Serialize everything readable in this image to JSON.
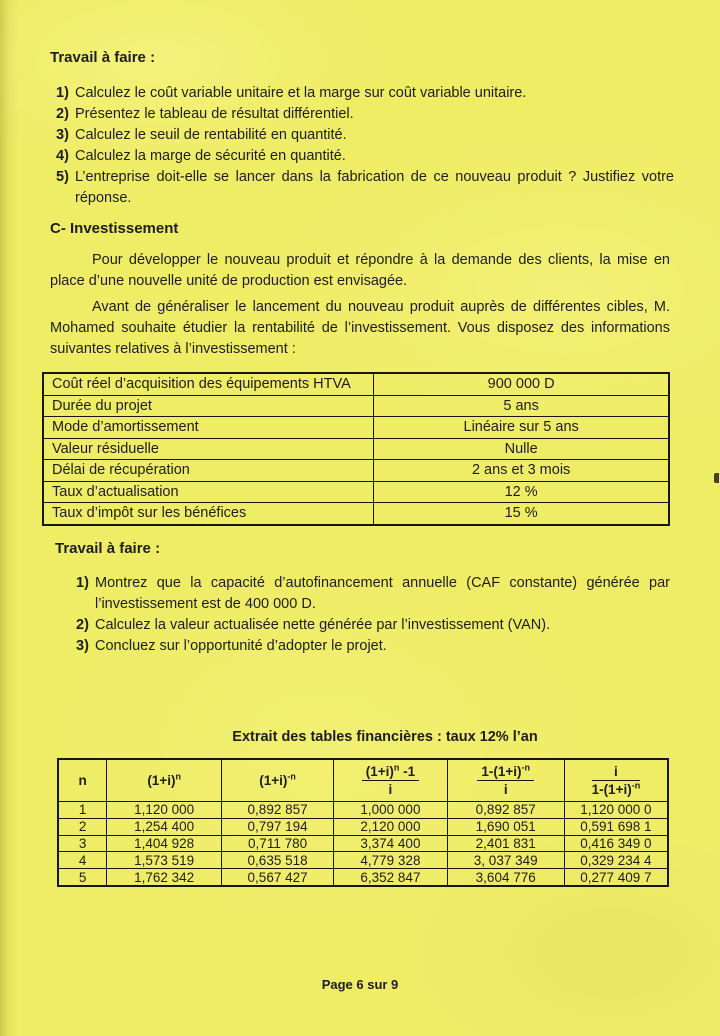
{
  "page": {
    "background_color": "#efec66",
    "text_color": "#1e1e1e",
    "footer": "Page 6 sur 9"
  },
  "work_a": {
    "heading": "Travail à faire :",
    "items": [
      {
        "num": "1)",
        "text": "Calculez le coût variable unitaire et la marge sur coût variable unitaire."
      },
      {
        "num": "2)",
        "text": "Présentez le tableau de résultat différentiel."
      },
      {
        "num": "3)",
        "text": "Calculez le seuil de rentabilité en quantité."
      },
      {
        "num": "4)",
        "text": "Calculez la marge de sécurité en quantité."
      },
      {
        "num": "5)",
        "text": "L’entreprise doit-elle se lancer dans la fabrication de ce nouveau produit ? Justifiez votre réponse."
      }
    ]
  },
  "section_c": {
    "heading": "C- Investissement",
    "paragraph1": "Pour développer le nouveau produit et répondre à la demande des clients, la mise en place d’une nouvelle unité de production est envisagée.",
    "paragraph2": "Avant de généraliser le lancement du nouveau produit auprès de différentes cibles, M. Mohamed souhaite étudier la rentabilité de l’investissement. Vous disposez des informations suivantes relatives à l’investissement :"
  },
  "investment_table": {
    "rows": [
      {
        "label": "Coût réel d’acquisition des équipements HTVA",
        "value": "900 000 D"
      },
      {
        "label": "Durée du projet",
        "value": "5 ans"
      },
      {
        "label": "Mode d’amortissement",
        "value": "Linéaire sur 5 ans"
      },
      {
        "label": "Valeur résiduelle",
        "value": "Nulle"
      },
      {
        "label": "Délai de récupération",
        "value": "2 ans et 3 mois"
      },
      {
        "label": "Taux d’actualisation",
        "value": "12 %"
      },
      {
        "label": "Taux d’impôt sur les bénéfices",
        "value": "15 %"
      }
    ]
  },
  "work_c": {
    "heading": "Travail à faire :",
    "items": [
      {
        "num": "1)",
        "text": "Montrez que la capacité d’autofinancement annuelle (CAF constante) générée par l’investissement est de 400 000 D."
      },
      {
        "num": "2)",
        "text": "Calculez la valeur actualisée nette générée par l’investissement (VAN)."
      },
      {
        "num": "3)",
        "text": "Concluez sur l’opportunité d’adopter le projet."
      }
    ]
  },
  "financial_table": {
    "title": "Extrait des tables financières : taux 12% l’an",
    "headers": {
      "n": "n",
      "c2_base": "(1+i)",
      "c2_sup": "n",
      "c3_base": "(1+i)",
      "c3_sup": "-n",
      "c4_num_base": "(1+i)",
      "c4_num_sup": "n",
      "c4_num_tail": " -1",
      "c4_den": "i",
      "c5_num_base": "1-(1+i)",
      "c5_num_sup": "-n",
      "c5_den": "i",
      "c6_num": "i",
      "c6_den_base": "1-(1+i)",
      "c6_den_sup": "-n"
    },
    "rows": [
      [
        "1",
        "1,120 000",
        "0,892 857",
        "1,000 000",
        "0,892 857",
        "1,120 000 0"
      ],
      [
        "2",
        "1,254 400",
        "0,797 194",
        "2,120 000",
        "1,690 051",
        "0,591 698 1"
      ],
      [
        "3",
        "1,404 928",
        "0,711 780",
        "3,374 400",
        "2,401 831",
        "0,416 349 0"
      ],
      [
        "4",
        "1,573 519",
        "0,635 518",
        "4,779 328",
        "3, 037 349",
        "0,329 234 4"
      ],
      [
        "5",
        "1,762 342",
        "0,567 427",
        "6,352 847",
        "3,604 776",
        "0,277 409 7"
      ]
    ]
  }
}
